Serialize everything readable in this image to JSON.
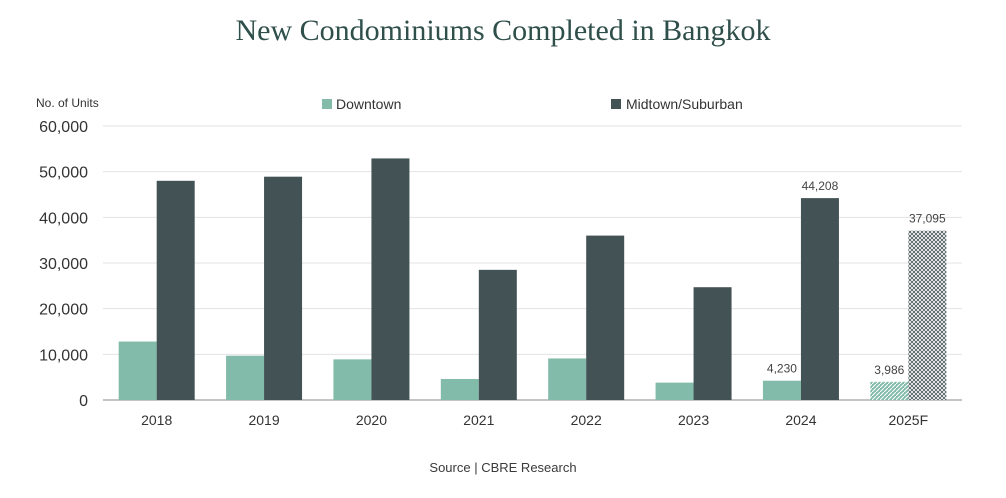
{
  "chart_data": {
    "type": "bar",
    "title": "New Condominiums Completed in Bangkok",
    "ylabel": "No. of Units",
    "xlabel": "",
    "ylim": [
      0,
      60000
    ],
    "yticks": [
      0,
      10000,
      20000,
      30000,
      40000,
      50000,
      60000
    ],
    "ytick_labels": [
      "0",
      "10,000",
      "20,000",
      "30,000",
      "40,000",
      "50,000",
      "60,000"
    ],
    "categories": [
      "2018",
      "2019",
      "2020",
      "2021",
      "2022",
      "2023",
      "2024",
      "2025F"
    ],
    "series": [
      {
        "name": "Downtown",
        "color": "#82bba9",
        "values": [
          12800,
          9700,
          8900,
          4600,
          9100,
          3800,
          4230,
          3986
        ]
      },
      {
        "name": "Midtown/Suburban",
        "color": "#435254",
        "values": [
          48000,
          48900,
          52900,
          28500,
          36000,
          24700,
          44208,
          37095
        ]
      }
    ],
    "data_labels": [
      {
        "series": 0,
        "index": 6,
        "text": "4,230"
      },
      {
        "series": 1,
        "index": 6,
        "text": "44,208"
      },
      {
        "series": 0,
        "index": 7,
        "text": "3,986"
      },
      {
        "series": 1,
        "index": 7,
        "text": "37,095"
      }
    ],
    "forecast_index": 7,
    "legend_position": "top",
    "grid": true,
    "source": "Source | CBRE Research"
  }
}
